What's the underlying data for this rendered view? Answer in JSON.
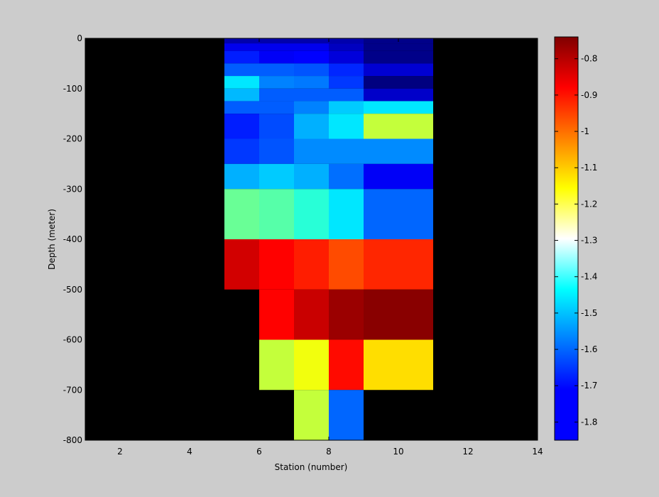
{
  "chart_data": {
    "type": "heatmap",
    "xlabel": "Station (number)",
    "ylabel": "Depth (meter)",
    "xlim": [
      1,
      14
    ],
    "ylim": [
      -800,
      0
    ],
    "xticks": [
      2,
      4,
      6,
      8,
      10,
      12,
      14
    ],
    "yticks": [
      0,
      -100,
      -200,
      -300,
      -400,
      -500,
      -600,
      -700,
      -800
    ],
    "colorbar": {
      "colormap": "jet",
      "clim": [
        -1.85,
        -0.74
      ],
      "ticks": [
        -0.8,
        -0.9,
        -1,
        -1.1,
        -1.2,
        -1.3,
        -1.4,
        -1.5,
        -1.6,
        -1.7,
        -1.8
      ]
    },
    "background_color": "#000000",
    "x_edges": [
      5,
      6,
      7,
      8,
      9,
      11
    ],
    "cells": [
      {
        "depth": [
          0,
          -10
        ],
        "values": [
          -1.8,
          -1.8,
          -1.8,
          -1.8,
          -1.84
        ]
      },
      {
        "depth": [
          -10,
          -25
        ],
        "values": [
          -1.73,
          -1.73,
          -1.73,
          -1.78,
          -1.84
        ]
      },
      {
        "depth": [
          -25,
          -50
        ],
        "values": [
          -1.68,
          -1.72,
          -1.71,
          -1.75,
          -1.84
        ]
      },
      {
        "depth": [
          -50,
          -75
        ],
        "values": [
          -1.61,
          -1.61,
          -1.62,
          -1.67,
          -1.76
        ]
      },
      {
        "depth": [
          -75,
          -100
        ],
        "values": [
          -1.46,
          -1.57,
          -1.58,
          -1.65,
          -1.85
        ]
      },
      {
        "depth": [
          -100,
          -125
        ],
        "values": [
          -1.51,
          -1.61,
          -1.61,
          -1.61,
          -1.77
        ]
      },
      {
        "depth": [
          -125,
          -150
        ],
        "values": [
          -1.61,
          -1.61,
          -1.57,
          -1.49,
          -1.46
        ]
      },
      {
        "depth": [
          -150,
          -200
        ],
        "values": [
          -1.68,
          -1.63,
          -1.52,
          -1.46,
          -1.22
        ]
      },
      {
        "depth": [
          -200,
          -250
        ],
        "values": [
          -1.65,
          -1.62,
          -1.56,
          -1.56,
          -1.56
        ]
      },
      {
        "depth": [
          -250,
          -300
        ],
        "values": [
          -1.52,
          -1.49,
          -1.52,
          -1.59,
          -1.72
        ]
      },
      {
        "depth": [
          -300,
          -400
        ],
        "values": [
          -1.32,
          -1.34,
          -1.39,
          -1.46,
          -1.6
        ]
      },
      {
        "depth": [
          -400,
          -500
        ],
        "values": [
          -0.83,
          -0.88,
          -0.91,
          -0.96,
          -0.92
        ]
      },
      {
        "depth": [
          -500,
          -600
        ],
        "values": [
          null,
          -0.88,
          -0.82,
          -0.77,
          -0.75
        ]
      },
      {
        "depth": [
          -600,
          -700
        ],
        "values": [
          null,
          -1.22,
          -1.17,
          -0.89,
          -1.12
        ]
      },
      {
        "depth": [
          -700,
          -800
        ],
        "values": [
          null,
          null,
          -1.22,
          -1.6,
          null
        ]
      }
    ]
  }
}
